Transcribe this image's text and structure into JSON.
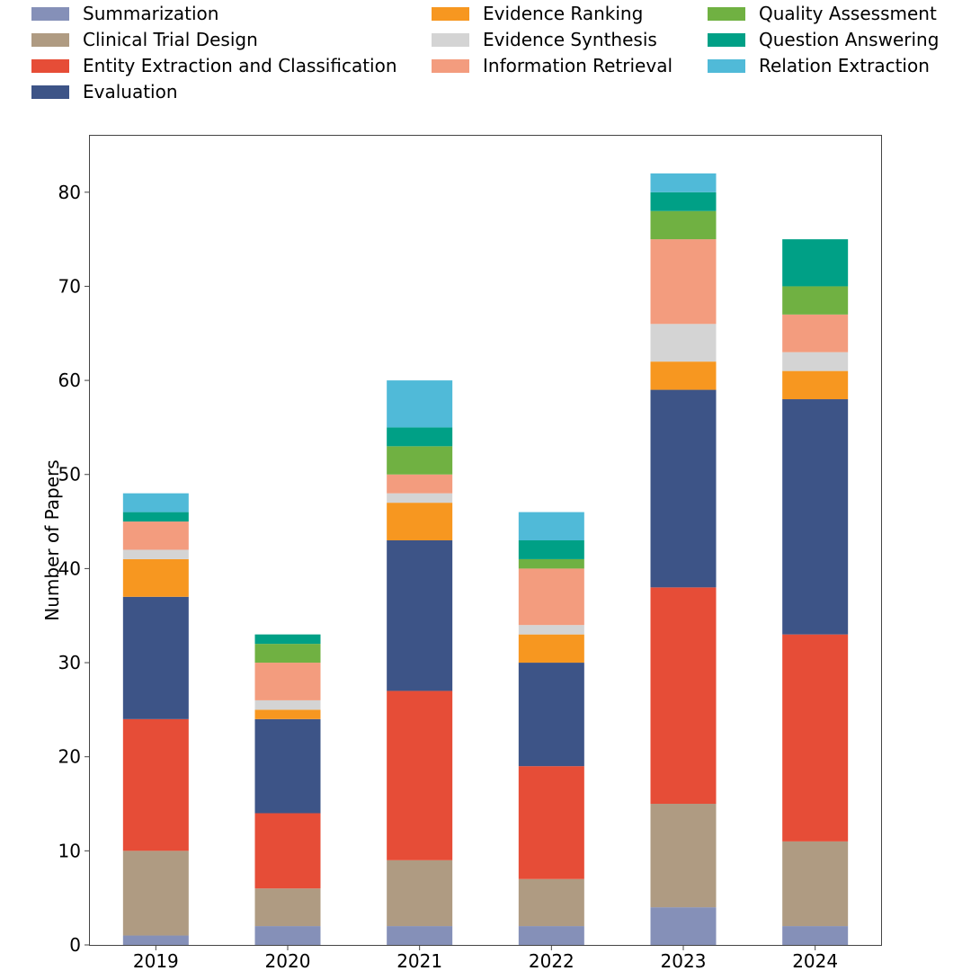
{
  "chart_data": {
    "type": "bar",
    "stacked": true,
    "title": "",
    "xlabel": "",
    "ylabel": "Number of Papers",
    "ylim": [
      0,
      86
    ],
    "yticks": [
      0,
      10,
      20,
      30,
      40,
      50,
      60,
      70,
      80
    ],
    "legend_position": "top",
    "categories": [
      "2019",
      "2020",
      "2021",
      "2022",
      "2023",
      "2024"
    ],
    "series": [
      {
        "name": "Summarization",
        "color": "#8590b8",
        "values": [
          1,
          2,
          2,
          2,
          4,
          2
        ]
      },
      {
        "name": "Clinical Trial Design",
        "color": "#af9b82",
        "values": [
          9,
          4,
          7,
          5,
          11,
          9
        ]
      },
      {
        "name": "Entity Extraction and Classification",
        "color": "#e64d37",
        "values": [
          14,
          8,
          18,
          12,
          23,
          22
        ]
      },
      {
        "name": "Evaluation",
        "color": "#3d5487",
        "values": [
          13,
          10,
          16,
          11,
          21,
          25
        ]
      },
      {
        "name": "Evidence Ranking",
        "color": "#f79720",
        "values": [
          4,
          1,
          4,
          3,
          3,
          3
        ]
      },
      {
        "name": "Evidence Synthesis",
        "color": "#d4d4d4",
        "values": [
          1,
          1,
          1,
          1,
          4,
          2
        ]
      },
      {
        "name": "Information Retrieval",
        "color": "#f39c7e",
        "values": [
          3,
          4,
          2,
          6,
          9,
          4
        ]
      },
      {
        "name": "Quality Assessment",
        "color": "#70b142",
        "values": [
          0,
          2,
          3,
          1,
          3,
          3
        ]
      },
      {
        "name": "Question Answering",
        "color": "#00a086",
        "values": [
          1,
          1,
          2,
          2,
          2,
          5
        ]
      },
      {
        "name": "Relation Extraction",
        "color": "#50bad8",
        "values": [
          2,
          0,
          5,
          3,
          2,
          0
        ]
      }
    ]
  }
}
